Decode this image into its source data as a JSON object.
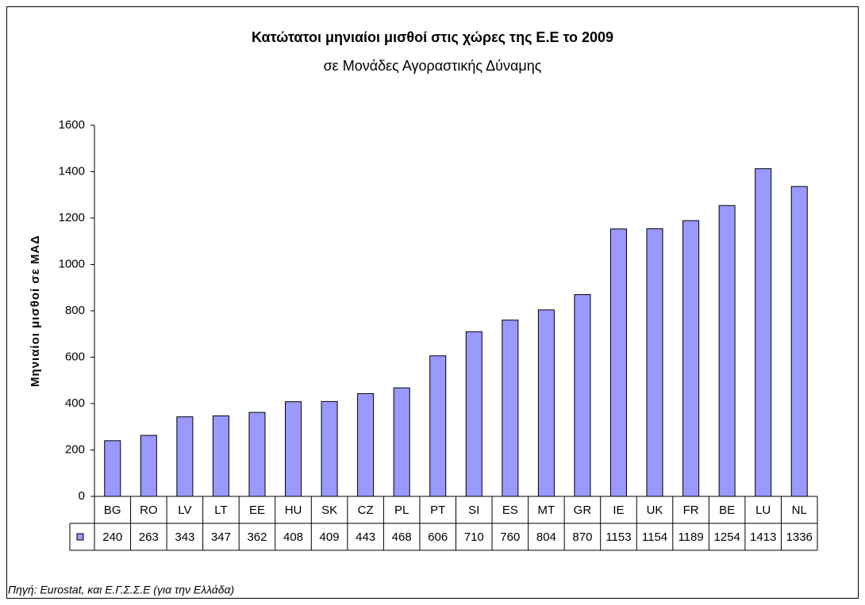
{
  "chart_data": {
    "type": "bar",
    "title": "Κατώτατοι μηνιαίοι μισθοί στις χώρες της Ε.Ε το 2009",
    "subtitle": "σε Μονάδες Αγοραστικής Δύναμης",
    "ylabel": "Μηνιαίοι μισθοί σε ΜΑΔ",
    "source": "Πηγή: Eurostat,  και  Ε.Γ.Σ.Σ.Ε (για την Ελλάδα)",
    "categories": [
      "BG",
      "RO",
      "LV",
      "LT",
      "EE",
      "HU",
      "SK",
      "CZ",
      "PL",
      "PT",
      "SI",
      "ES",
      "MT",
      "GR",
      "IE",
      "UK",
      "FR",
      "BE",
      "LU",
      "NL"
    ],
    "values": [
      240,
      263,
      343,
      347,
      362,
      408,
      409,
      443,
      468,
      606,
      710,
      760,
      804,
      870,
      1153,
      1154,
      1189,
      1254,
      1413,
      1336
    ],
    "color": "#9999ff",
    "ylim": [
      0,
      1600
    ],
    "yticks": [
      0,
      200,
      400,
      600,
      800,
      1000,
      1200,
      1400,
      1600
    ]
  }
}
